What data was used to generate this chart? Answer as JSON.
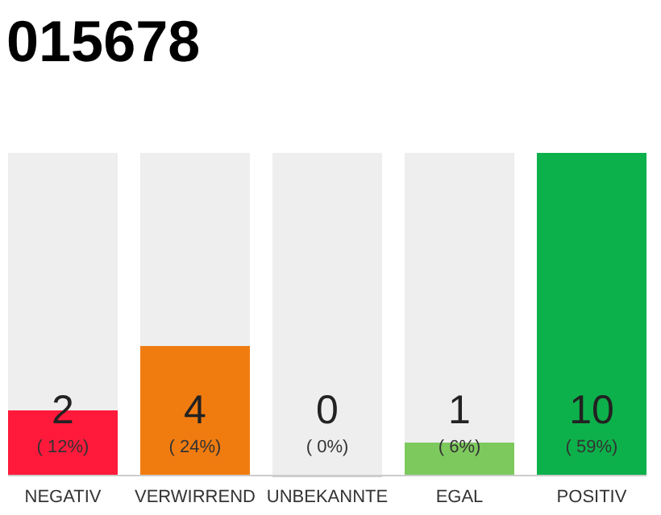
{
  "chart_data": {
    "type": "bar",
    "title": "015678",
    "categories": [
      "NEGATIV",
      "VERWIRREND",
      "UNBEKANNTE",
      "EGAL",
      "POSITIV"
    ],
    "stacked": true,
    "series": [
      {
        "colors": [
          "#ff1a3c",
          "#f07c10",
          "#cccccc",
          "#7dc95e",
          "#0db14b"
        ],
        "values": [
          2,
          4,
          0,
          1,
          10
        ],
        "value_labels": [
          "2",
          "4",
          "0",
          "1",
          "10"
        ]
      },
      {
        "color": "#eeeeee",
        "values": [
          8,
          6,
          10,
          9,
          0
        ]
      }
    ],
    "ylim": [
      0,
      10
    ],
    "annotations": [
      "( 12%)",
      "( 24%)",
      "( 0%)",
      "( 6%)",
      "( 59%)"
    ]
  }
}
